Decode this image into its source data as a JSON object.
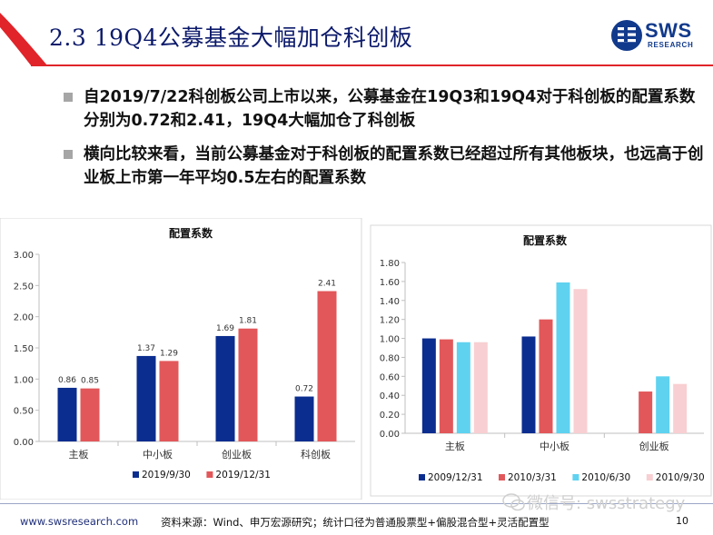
{
  "header": {
    "title": "2.3 19Q4公募基金大幅加仓科创板",
    "logo_text": "SWS",
    "logo_sub": "RESEARCH"
  },
  "bullets": [
    "自2019/7/22科创板公司上市以来，公募基金在19Q3和19Q4对于科创板的配置系数分别为0.72和2.41，19Q4大幅加仓了科创板",
    "横向比较来看，当前公募基金对于科创板的配置系数已经超过所有其他板块，也远高于创业板上市第一年平均0.5左右的配置系数"
  ],
  "chart_data": [
    {
      "type": "bar",
      "title": "配置系数",
      "categories": [
        "主板",
        "中小板",
        "创业板",
        "科创板"
      ],
      "series": [
        {
          "name": "2019/9/30",
          "values": [
            0.86,
            1.37,
            1.69,
            0.72
          ],
          "color": "#0b2d8f"
        },
        {
          "name": "2019/12/31",
          "values": [
            0.85,
            1.29,
            1.81,
            2.41
          ],
          "color": "#e2575a"
        }
      ],
      "ylim": [
        0,
        3.0
      ],
      "yticks": [
        "0.00",
        "0.50",
        "1.00",
        "1.50",
        "2.00",
        "2.50",
        "3.00"
      ],
      "data_labels": true,
      "grid": false,
      "legend": "bottom"
    },
    {
      "type": "bar",
      "title": "配置系数",
      "categories": [
        "主板",
        "中小板",
        "创业板"
      ],
      "series": [
        {
          "name": "2009/12/31",
          "values": [
            1.0,
            1.02,
            null
          ],
          "color": "#0b2d8f"
        },
        {
          "name": "2010/3/31",
          "values": [
            0.99,
            1.2,
            0.44
          ],
          "color": "#e2575a"
        },
        {
          "name": "2010/6/30",
          "values": [
            0.96,
            1.59,
            0.6
          ],
          "color": "#5fd2f0"
        },
        {
          "name": "2010/9/30",
          "values": [
            0.96,
            1.52,
            0.52
          ],
          "color": "#f8cfd2"
        }
      ],
      "ylim": [
        0,
        1.8
      ],
      "yticks": [
        "0.00",
        "0.20",
        "0.40",
        "0.60",
        "0.80",
        "1.00",
        "1.20",
        "1.40",
        "1.60",
        "1.80"
      ],
      "data_labels": false,
      "grid": false,
      "legend": "bottom"
    }
  ],
  "footer": {
    "url": "www.swsresearch.com",
    "source": "资料来源：Wind、申万宏源研究；统计口径为普通股票型+偏股混合型+灵活配置型",
    "page": "10",
    "watermark": "微信号: swsstrategy"
  },
  "colors": {
    "title": "#0c1a6b",
    "accent_red": "#e0242a",
    "brand_blue": "#123a8c"
  }
}
